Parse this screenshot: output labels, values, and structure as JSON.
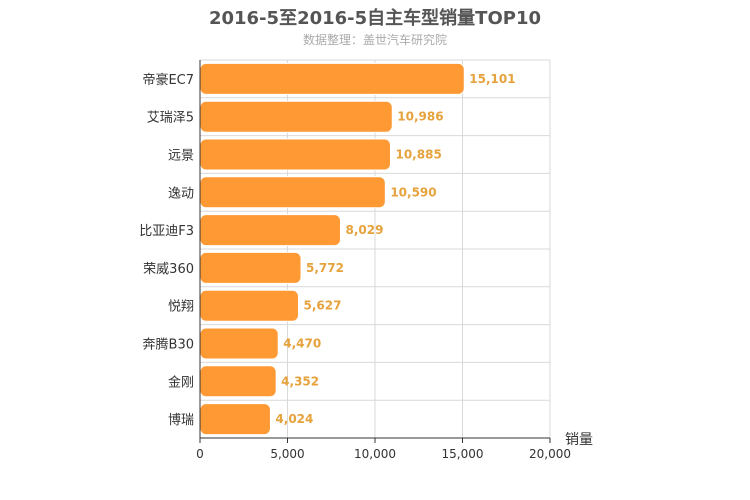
{
  "chart_data": {
    "type": "bar",
    "orientation": "horizontal",
    "title": "2016-5至2016-5自主车型销量TOP10",
    "subtitle": "数据整理：盖世汽车研究院",
    "categories": [
      "帝豪EC7",
      "艾瑞泽5",
      "远景",
      "逸动",
      "比亚迪F3",
      "荣威360",
      "悦翔",
      "奔腾B30",
      "金刚",
      "博瑞"
    ],
    "values": [
      15101,
      10986,
      10885,
      10590,
      8029,
      5772,
      5627,
      4470,
      4352,
      4024
    ],
    "value_labels": [
      "15,101",
      "10,986",
      "10,885",
      "10,590",
      "8,029",
      "5,772",
      "5,627",
      "4,470",
      "4,352",
      "4,024"
    ],
    "xlabel": "销量",
    "xlim": [
      0,
      20000
    ],
    "xticks": [
      0,
      5000,
      10000,
      15000,
      20000
    ],
    "xtick_labels": [
      "0",
      "5,000",
      "10,000",
      "15,000",
      "20,000"
    ],
    "grid": true,
    "colors": {
      "bar": "#ff9933",
      "bar_stroke": "#ffffff",
      "data_label": "#e6a23c",
      "grid": "#d9d9d9",
      "axis": "#333333"
    }
  }
}
